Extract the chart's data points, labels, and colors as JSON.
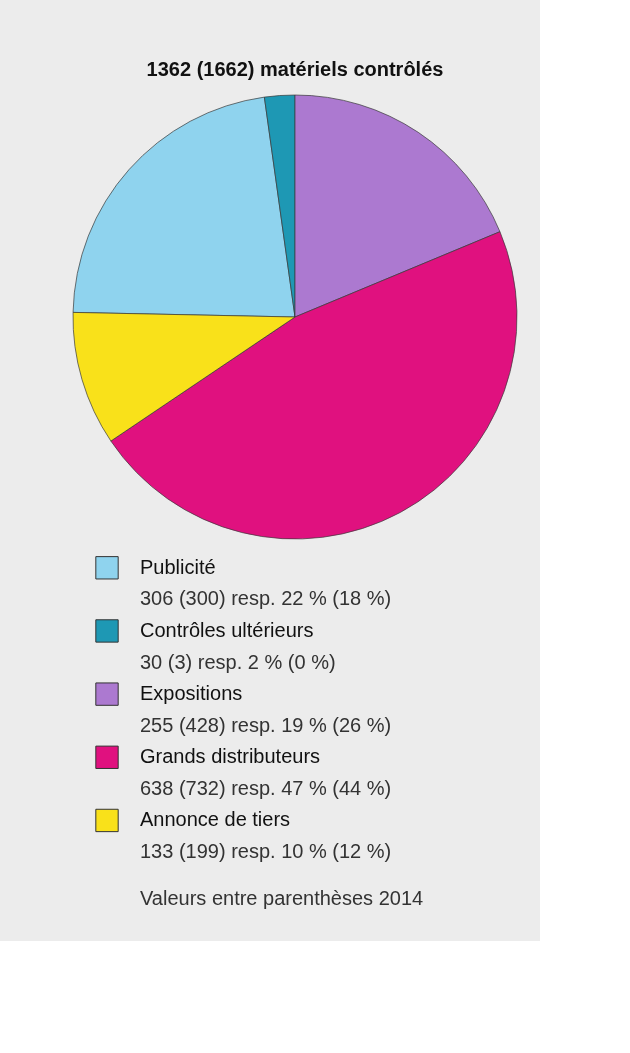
{
  "chart_data": {
    "type": "pie",
    "title": "1362 (1662) matériels contrôlés",
    "categories": [
      "Publicité",
      "Contrôles ultérieurs",
      "Expositions",
      "Grands distributeurs",
      "Annonce de tiers"
    ],
    "values": [
      306,
      30,
      255,
      638,
      133
    ],
    "colors": [
      "#8fd3ee",
      "#1e98b4",
      "#ac79d0",
      "#e0117f",
      "#f9e11a"
    ],
    "value_labels": [
      "306 (300) resp. 22 % (18 %)",
      "30 (3) resp. 2 % (0 %)",
      "255 (428) resp. 19 % (26 %)",
      "638 (732) resp. 47 % (44 %)",
      "133 (199) resp. 10 % (12 %)"
    ],
    "legend": "bottom",
    "annotations": [
      "Valeurs entre parenthèses 2014"
    ]
  }
}
